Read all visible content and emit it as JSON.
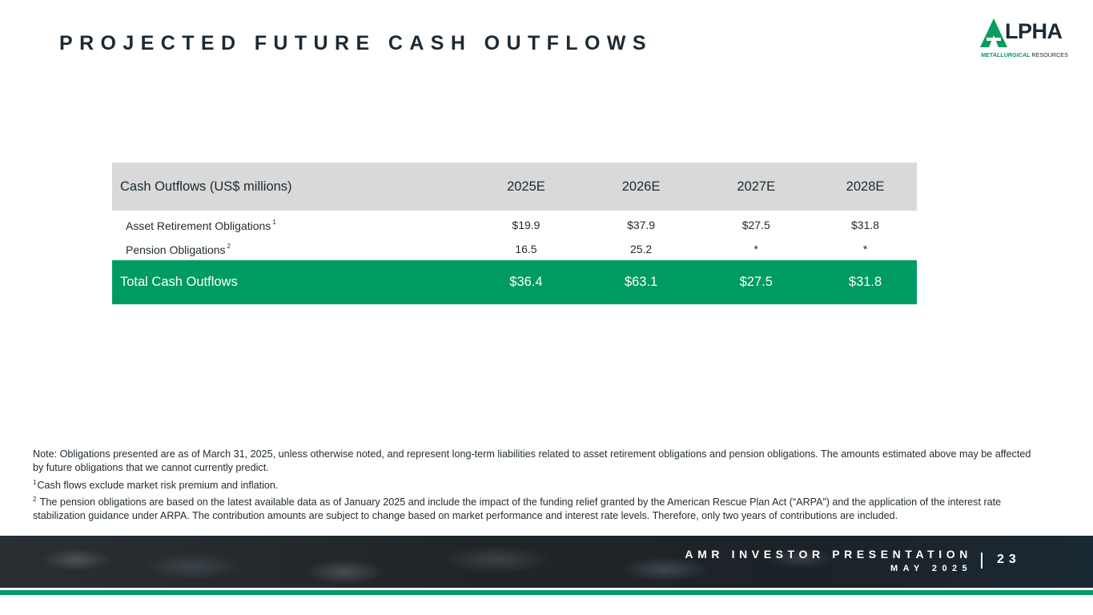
{
  "slide": {
    "title": "PROJECTED FUTURE CASH OUTFLOWS"
  },
  "logo": {
    "name": "LPHA",
    "subtitle_bold": "METALLURGICAL",
    "subtitle": "RESOURCES"
  },
  "table": {
    "header": [
      "Cash Outflows (US$ millions)",
      "2025E",
      "2026E",
      "2027E",
      "2028E"
    ],
    "rows": [
      {
        "label": "Asset Retirement Obligations",
        "footnote": "1",
        "values": [
          "$19.9",
          "$37.9",
          "$27.5",
          "$31.8"
        ]
      },
      {
        "label": "Pension Obligations",
        "footnote": "2",
        "values": [
          "16.5",
          "25.2",
          "*",
          "*"
        ]
      }
    ],
    "total": {
      "label": "Total Cash Outflows",
      "values": [
        "$36.4",
        "$63.1",
        "$27.5",
        "$31.8"
      ]
    }
  },
  "notes": {
    "main": "Note: Obligations presented are as of March 31, 2025, unless otherwise noted, and represent long-term liabilities related to asset retirement obligations and pension obligations. The amounts estimated above may be affected by future obligations that we cannot currently predict.",
    "fn1_mark": "1",
    "fn1": "Cash flows exclude market risk premium and inflation.",
    "fn2_mark": "2",
    "fn2": "The pension obligations are based on the latest available data as of January 2025 and include the impact of the funding relief granted by the American Rescue Plan Act (“ARPA”) and the application of the interest rate stabilization guidance under ARPA. The contribution amounts are subject to change based on market performance and interest rate levels. Therefore, only two years of contributions are included."
  },
  "footer": {
    "title": "AMR INVESTOR PRESENTATION",
    "date": "MAY 2025",
    "page": "23"
  },
  "colors": {
    "accent_green": "#009a63",
    "header_gray": "#d9d9d9",
    "title_dark": "#1c2a33"
  }
}
